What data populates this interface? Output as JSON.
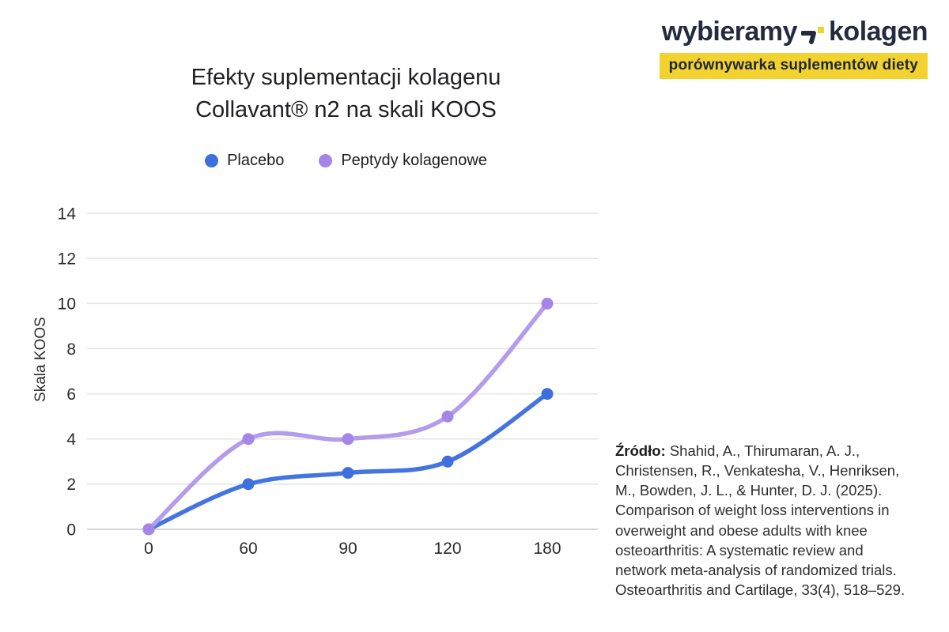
{
  "header": {
    "title": "Efekty suplementacji kolagenu\nCollavant® n2 na skali KOOS"
  },
  "logo": {
    "wordmark_left": "wybieramy",
    "wordmark_right": "kolagen",
    "tagline": "porównywarka suplementów diety",
    "navy": "#252b3f",
    "yellow": "#f2d22e"
  },
  "chart_data": {
    "type": "line",
    "title": "Efekty suplementacji kolagenu Collavant® n2 na skali KOOS",
    "categories": [
      "0",
      "60",
      "90",
      "120",
      "180"
    ],
    "series": [
      {
        "name": "Placebo",
        "values": [
          0,
          2,
          2.5,
          3,
          6
        ],
        "line_color": "#4473e2",
        "marker_color": "#3f6ede"
      },
      {
        "name": "Peptydy kolagenowe",
        "values": [
          0,
          4,
          4,
          5,
          10
        ],
        "line_color": "#b49bec",
        "marker_color": "#a685e8"
      }
    ],
    "xlabel": "",
    "ylabel": "Skala KOOS",
    "ylim": [
      0,
      14
    ],
    "ytick_step": 2,
    "grid": true,
    "grid_color": "#e3e3e3",
    "axis_line_color": "#c9c9c9",
    "legend_position": "top"
  },
  "source": {
    "label": "Źródło:",
    "text": "Shahid, A., Thirumaran, A. J.,\nChristensen, R., Venkatesha, V., Henriksen,\nM., Bowden, J. L., & Hunter, D. J. (2025).\nComparison of weight loss interventions in\noverweight and obese adults with knee\nosteoarthritis: A systematic review and\nnetwork meta-analysis of randomized trials.\nOsteoarthritis and Cartilage, 33(4), 518–529."
  }
}
